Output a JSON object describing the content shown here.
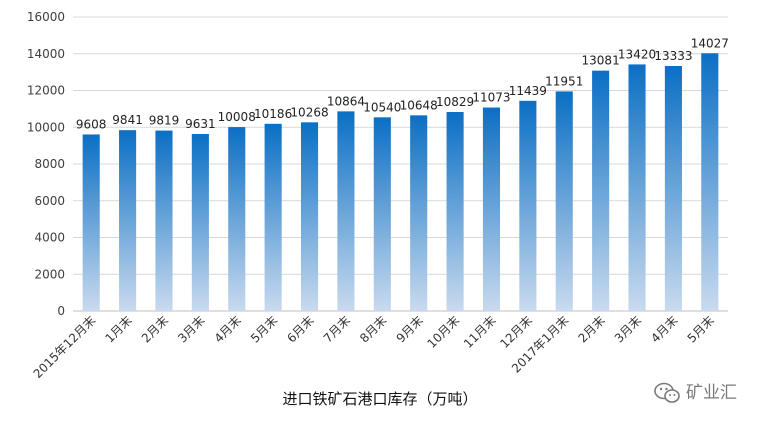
{
  "chart_data": {
    "type": "bar",
    "title": "进口铁矿石港口库存（万吨）",
    "categories": [
      "2015年12月末",
      "1月末",
      "2月末",
      "3月末",
      "4月末",
      "5月末",
      "6月末",
      "7月末",
      "8月末",
      "9月末",
      "10月末",
      "11月末",
      "12月末",
      "2017年1月末",
      "2月末",
      "3月末",
      "4月末",
      "5月末"
    ],
    "values": [
      9608,
      9841,
      9819,
      9631,
      10008,
      10186,
      10268,
      10864,
      10540,
      10648,
      10829,
      11073,
      11439,
      11951,
      13081,
      13420,
      13333,
      14027
    ],
    "ylim": [
      0,
      16000
    ],
    "yticks": [
      0,
      2000,
      4000,
      6000,
      8000,
      10000,
      12000,
      14000,
      16000
    ],
    "grid": true,
    "bar_gradient": {
      "top": "#0B6FC4",
      "bottom": "#C9DAEE"
    }
  },
  "watermark": {
    "text": "矿业汇",
    "icon": "wechat-icon",
    "color": "#7a7a7a"
  }
}
